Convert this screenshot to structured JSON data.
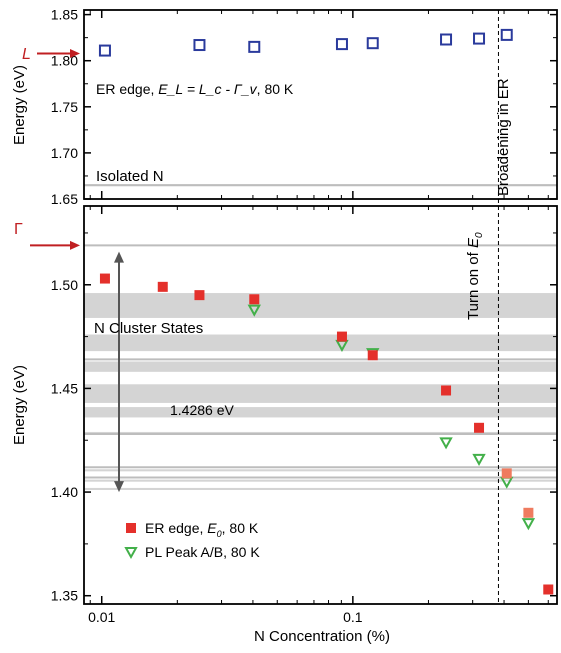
{
  "chart_data": [
    {
      "panel": "top",
      "type": "scatter",
      "ylabel": "Energy (eV)",
      "xscale": "log",
      "xlim": [
        0.0085,
        0.65
      ],
      "ylim": [
        1.65,
        1.855
      ],
      "y_ticks": [
        "1.65",
        "1.70",
        "1.75",
        "1.80",
        "1.85"
      ],
      "grid": false,
      "series": [
        {
          "name": "ER edge, E_L = L_c - Γ_v, 80 K",
          "marker": "open-square",
          "color": "#2a3a9c",
          "x": [
            0.0103,
            0.0245,
            0.0405,
            0.0905,
            0.12,
            0.235,
            0.318,
            0.41
          ],
          "y": [
            1.811,
            1.817,
            1.815,
            1.818,
            1.819,
            1.823,
            1.824,
            1.828
          ]
        }
      ],
      "reference_lines": [
        {
          "y": 1.665
        }
      ],
      "annotations": {
        "legend_prefix": "ER edge, ",
        "legend_formula": "E_L = L_c - Γ_v",
        "legend_suffix": ", 80 K",
        "isolated_n": "Isolated N",
        "broadening": "Broadening in ER",
        "L_marker": {
          "label": "L",
          "y": 1.812
        }
      }
    },
    {
      "panel": "bottom",
      "type": "scatter",
      "xlabel": "N Concentration (%)",
      "ylabel": "Energy (eV)",
      "xscale": "log",
      "xlim": [
        0.0085,
        0.65
      ],
      "ylim": [
        1.346,
        1.538
      ],
      "x_ticks": [
        "0.01",
        "0.1"
      ],
      "y_ticks": [
        "1.35",
        "1.40",
        "1.45",
        "1.50"
      ],
      "grid": false,
      "series": [
        {
          "name": "ER edge, E_0, 80 K",
          "marker": "filled-square",
          "color": "#e4302b",
          "x": [
            0.0103,
            0.0175,
            0.0245,
            0.0405,
            0.0905,
            0.12,
            0.235,
            0.318,
            0.41,
            0.5,
            0.6
          ],
          "y": [
            1.503,
            1.499,
            1.495,
            1.493,
            1.475,
            1.466,
            1.449,
            1.431,
            1.409,
            1.39,
            1.353
          ]
        },
        {
          "name": "PL Peak A/B, 80 K",
          "marker": "open-triangle-down",
          "color": "#43b04a",
          "x": [
            0.0405,
            0.0905,
            0.12,
            0.235,
            0.318,
            0.41,
            0.5
          ],
          "y": [
            1.488,
            1.471,
            1.467,
            1.424,
            1.416,
            1.405,
            1.385
          ]
        }
      ],
      "bands": [
        [
          1.484,
          1.496
        ],
        [
          1.468,
          1.476
        ],
        [
          1.458,
          1.463
        ],
        [
          1.443,
          1.452
        ],
        [
          1.436,
          1.441
        ],
        [
          1.428,
          1.429
        ],
        [
          1.41,
          1.411
        ],
        [
          1.405,
          1.406
        ],
        [
          1.401,
          1.402
        ]
      ],
      "band_lines": [
        1.519,
        1.464,
        1.428,
        1.412,
        1.407
      ],
      "annotations": {
        "cluster": "N Cluster States",
        "value": "1.4286 eV",
        "turn_on_prefix": "Turn on of ",
        "turn_on_symbol": "E",
        "turn_on_sub": "0",
        "gamma_marker": {
          "label": "Γ",
          "y": 1.519
        },
        "arrow_range": [
          1.4,
          1.516
        ],
        "vline_x": 0.38
      },
      "legend": [
        {
          "prefix": "ER edge, ",
          "symbol": "E",
          "sub": "0",
          "suffix": ", 80 K"
        },
        {
          "prefix": "PL Peak A/B, 80 K",
          "symbol": "",
          "sub": "",
          "suffix": ""
        }
      ]
    }
  ]
}
